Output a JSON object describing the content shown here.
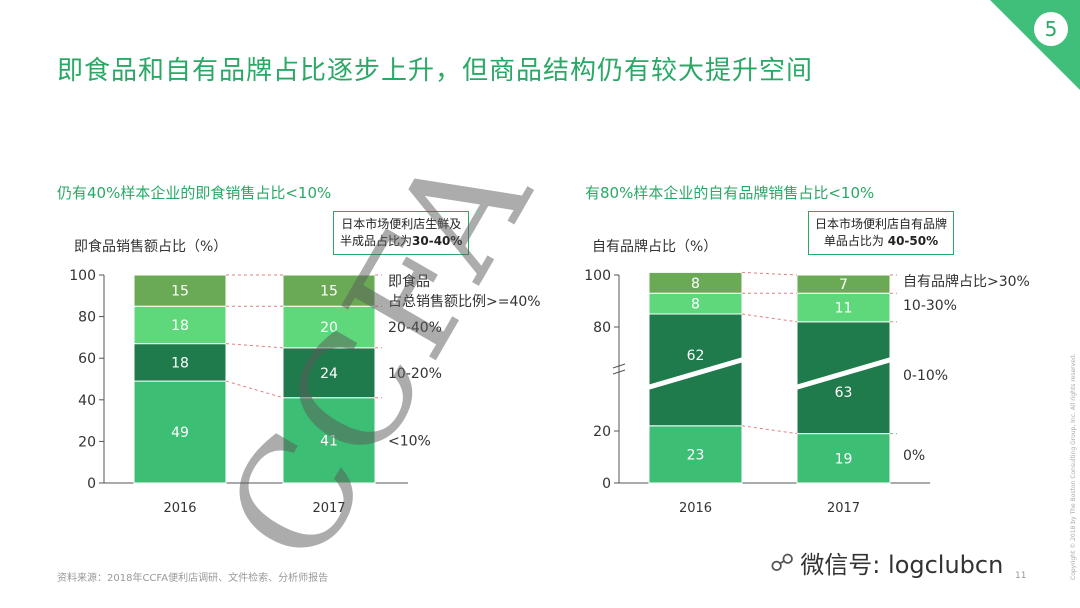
{
  "page_number": "5",
  "title": "即食品和自有品牌占比逐步上升，但商品结构仍有较大提升空间",
  "watermark": "CCFA",
  "source": "资料来源：2018年CCFA便利店调研、文件检索、分析师报告",
  "page_index": "11",
  "wechat": "微信号: logclubcn",
  "copyright": "Copyright © 2018 by The Boston Consulting Group, Inc. All rights reserved.",
  "colors": {
    "accent": "#2aa866",
    "seg_top": "#6aaa55",
    "seg_light": "#5ed87a",
    "seg_dark": "#1f7a4c",
    "seg_base": "#3cbf75"
  },
  "left": {
    "subtitle": "仍有40%样本企业的即食销售占比<10%",
    "ylabel": "即食品销售额占比（%）",
    "note_line1": "日本市场便利店生鲜及",
    "note_line2_pre": "半成品占比为",
    "note_line2_bold": "30-40%"
  },
  "right": {
    "subtitle": "有80%样本企业的自有品牌销售占比<10%",
    "ylabel": "自有品牌占比（%）",
    "note_line1": "日本市场便利店自有品牌",
    "note_line2_pre": "单品占比为 ",
    "note_line2_bold": "40-50%"
  },
  "chart_data": [
    {
      "type": "bar",
      "stacked": true,
      "title": "仍有40%样本企业的即食销售占比<10%",
      "ylabel": "即食品销售额占比（%）",
      "categories": [
        "2016",
        "2017"
      ],
      "ylim": [
        0,
        100
      ],
      "yticks": [
        "0",
        "20",
        "40",
        "60",
        "80",
        "100"
      ],
      "series": [
        {
          "name": "<10%",
          "values": [
            49,
            41
          ]
        },
        {
          "name": "10-20%",
          "values": [
            18,
            24
          ]
        },
        {
          "name": "20-40%",
          "values": [
            18,
            20
          ]
        },
        {
          "name": "即食品占总销售额比例>=40%",
          "values": [
            15,
            15
          ]
        }
      ],
      "legend_lines": [
        [
          "<10%"
        ],
        [
          "10-20%"
        ],
        [
          "20-40%"
        ],
        [
          "即食品",
          "占总销售额比例>=40%"
        ]
      ]
    },
    {
      "type": "bar",
      "stacked": true,
      "axis_break": true,
      "title": "有80%样本企业的自有品牌销售占比<10%",
      "ylabel": "自有品牌占比（%）",
      "categories": [
        "2016",
        "2017"
      ],
      "ylim": [
        0,
        100
      ],
      "yticks": [
        "0",
        "20",
        "80",
        "100"
      ],
      "series": [
        {
          "name": "0%",
          "values": [
            23,
            19
          ]
        },
        {
          "name": "0-10%",
          "values": [
            62,
            63
          ]
        },
        {
          "name": "10-30%",
          "values": [
            8,
            11
          ]
        },
        {
          "name": "自有品牌占比>30%",
          "values": [
            8,
            7
          ]
        }
      ],
      "legend_lines": [
        [
          "0%"
        ],
        [
          "0-10%"
        ],
        [
          "10-30%"
        ],
        [
          "自有品牌占比>30%"
        ]
      ]
    }
  ]
}
